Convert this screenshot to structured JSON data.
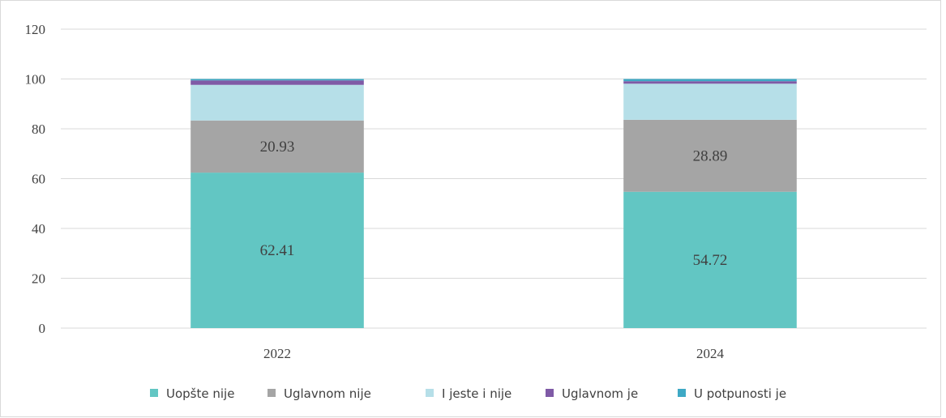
{
  "chart_data": {
    "type": "stacked_bar",
    "categories": [
      "2022",
      "2024"
    ],
    "series": [
      {
        "name": "Uopšte nije",
        "color": "#62c6c3",
        "values": [
          62.41,
          54.72
        ],
        "show_labels": true
      },
      {
        "name": "Uglavnom nije",
        "color": "#a5a5a5",
        "values": [
          20.93,
          28.89
        ],
        "show_labels": true
      },
      {
        "name": "I jeste i nije",
        "color": "#b6dfe8",
        "values": [
          14.3,
          14.5
        ],
        "show_labels": false
      },
      {
        "name": "Uglavnom je",
        "color": "#7f5aa6",
        "values": [
          1.8,
          1.0
        ],
        "show_labels": false
      },
      {
        "name": "U potpunosti je",
        "color": "#3ea9c5",
        "values": [
          0.56,
          0.89
        ],
        "show_labels": false
      }
    ],
    "ylim": [
      0,
      120
    ],
    "yticks": [
      0,
      20,
      40,
      60,
      80,
      100,
      120
    ],
    "grid": true,
    "legend": "bottom"
  }
}
